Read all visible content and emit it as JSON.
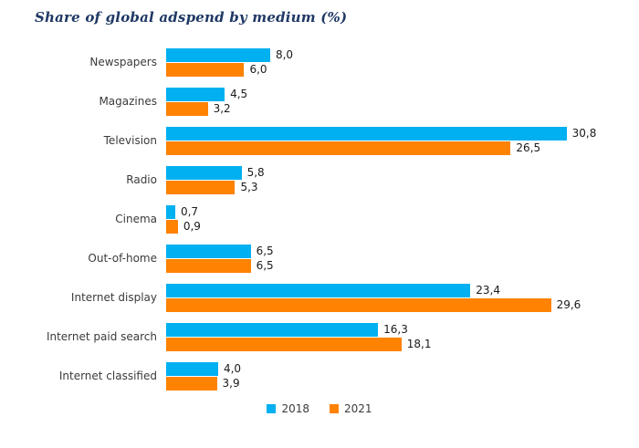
{
  "title": "Share of global adspend by medium (%)",
  "colors": {
    "series_2018": "#00B0F0",
    "series_2021": "#FF8200",
    "title_text": "#1F3864"
  },
  "chart_data": {
    "type": "bar",
    "orientation": "horizontal",
    "title": "Share of global adspend by medium (%)",
    "xlabel": "",
    "ylabel": "",
    "xlim": [
      0,
      33
    ],
    "grid": false,
    "legend_position": "bottom",
    "decimal_separator": ",",
    "categories": [
      "Newspapers",
      "Magazines",
      "Television",
      "Radio",
      "Cinema",
      "Out-of-home",
      "Internet display",
      "Internet paid search",
      "Internet classified"
    ],
    "series": [
      {
        "name": "2018",
        "color": "#00B0F0",
        "values": [
          8.0,
          4.5,
          30.8,
          5.8,
          0.7,
          6.5,
          23.4,
          16.3,
          4.0
        ],
        "labels": [
          "8,0",
          "4,5",
          "30,8",
          "5,8",
          "0,7",
          "6,5",
          "23,4",
          "16,3",
          "4,0"
        ]
      },
      {
        "name": "2021",
        "color": "#FF8200",
        "values": [
          6.0,
          3.2,
          26.5,
          5.3,
          0.9,
          6.5,
          29.6,
          18.1,
          3.9
        ],
        "labels": [
          "6,0",
          "3,2",
          "26,5",
          "5,3",
          "0,9",
          "6,5",
          "29,6",
          "18,1",
          "3,9"
        ]
      }
    ]
  },
  "legend": {
    "items": [
      {
        "label": "2018",
        "color": "#00B0F0"
      },
      {
        "label": "2021",
        "color": "#FF8200"
      }
    ]
  }
}
